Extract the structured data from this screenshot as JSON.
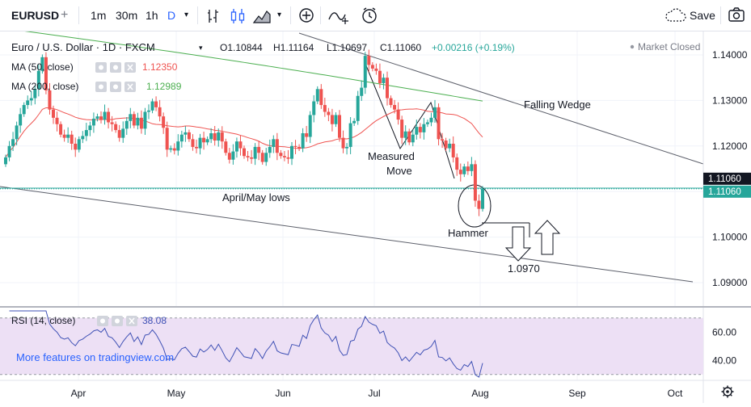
{
  "toolbar": {
    "symbol": "EURUSD",
    "intervals": [
      "1m",
      "30m",
      "1h",
      "D"
    ],
    "active_interval": "D",
    "save_label": "Save"
  },
  "legend": {
    "title": "Euro / U.S. Dollar · 1D · FXCM",
    "ohlc": {
      "o": "O1.10844",
      "h": "H1.11164",
      "l": "L1.10697",
      "c": "C1.11060"
    },
    "change": "+0.00216 (+0.19%)",
    "market_status": "Market Closed",
    "ma50_label": "MA (50, close)",
    "ma50_value": "1.12350",
    "ma200_label": "MA (200, close)",
    "ma200_value": "1.12989",
    "rsi_label": "RSI (14, close)",
    "rsi_value": "38.08"
  },
  "annotations": {
    "falling_wedge": "Falling Wedge",
    "measured": "Measured",
    "move": "Move",
    "april_may_lows": "April/May lows",
    "hammer": "Hammer",
    "target": "1.0970"
  },
  "watermark": "More features on tradingview.com",
  "colors": {
    "up": "#26a69a",
    "down": "#ef5350",
    "ma50": "#ef5350",
    "ma200": "#4caf50",
    "rsi": "#3f51b5",
    "accent": "#2962ff",
    "rsi_band": "#e1bee7"
  },
  "chart_data": {
    "type": "candlestick",
    "symbol": "EURUSD",
    "timeframe": "1D",
    "x_tick_labels": [
      "Apr",
      "May",
      "Jun",
      "Jul",
      "Aug",
      "Sep",
      "Oct"
    ],
    "y_tick_labels": [
      "1.14000",
      "1.13000",
      "1.12000",
      "1.11000",
      "1.10000",
      "1.09000"
    ],
    "ylim": [
      1.0883,
      1.1447
    ],
    "last_price": 1.1106,
    "last_price_label": "1.11060",
    "price_line_label": "1.11060",
    "ma50_last": 1.1235,
    "ma200_last": 1.12989,
    "rsi_ticks": [
      "60.00",
      "40.00"
    ],
    "rsi_ylim": [
      27,
      75
    ],
    "rsi_bands": [
      70,
      30
    ],
    "rsi_last": 38.08,
    "close_series": [
      1.1175,
      1.12,
      1.1215,
      1.1245,
      1.127,
      1.129,
      1.13,
      1.1305,
      1.1325,
      1.1365,
      1.1395,
      1.1322,
      1.128,
      1.1262,
      1.1248,
      1.1225,
      1.1218,
      1.1225,
      1.1205,
      1.1192,
      1.1215,
      1.1222,
      1.1235,
      1.1245,
      1.126,
      1.1265,
      1.1258,
      1.1275,
      1.1252,
      1.1248,
      1.1235,
      1.1218,
      1.1238,
      1.1255,
      1.127,
      1.1245,
      1.1262,
      1.1238,
      1.1275,
      1.1278,
      1.1298,
      1.1285,
      1.1265,
      1.124,
      1.1192,
      1.1195,
      1.119,
      1.121,
      1.1225,
      1.123,
      1.1215,
      1.1198,
      1.1195,
      1.1218,
      1.1208,
      1.1215,
      1.1228,
      1.1212,
      1.123,
      1.121,
      1.1185,
      1.117,
      1.1188,
      1.121,
      1.1195,
      1.1178,
      1.1175,
      1.1172,
      1.1198,
      1.1185,
      1.1165,
      1.1185,
      1.1198,
      1.1215,
      1.1185,
      1.1178,
      1.1175,
      1.1172,
      1.12,
      1.1198,
      1.1195,
      1.1228,
      1.122,
      1.1268,
      1.1298,
      1.1325,
      1.129,
      1.1275,
      1.1268,
      1.1248,
      1.1268,
      1.1218,
      1.1195,
      1.1198,
      1.125,
      1.1255,
      1.131,
      1.1328,
      1.1398,
      1.1378,
      1.137,
      1.1365,
      1.1338,
      1.135,
      1.1305,
      1.129,
      1.128,
      1.1258,
      1.1218,
      1.1232,
      1.1208,
      1.1225,
      1.1242,
      1.123,
      1.1248,
      1.1252,
      1.1262,
      1.1285,
      1.1215,
      1.1212,
      1.1195,
      1.1205,
      1.1175,
      1.1148,
      1.1138,
      1.1155,
      1.1145,
      1.116,
      1.108,
      1.1062,
      1.1106
    ]
  }
}
